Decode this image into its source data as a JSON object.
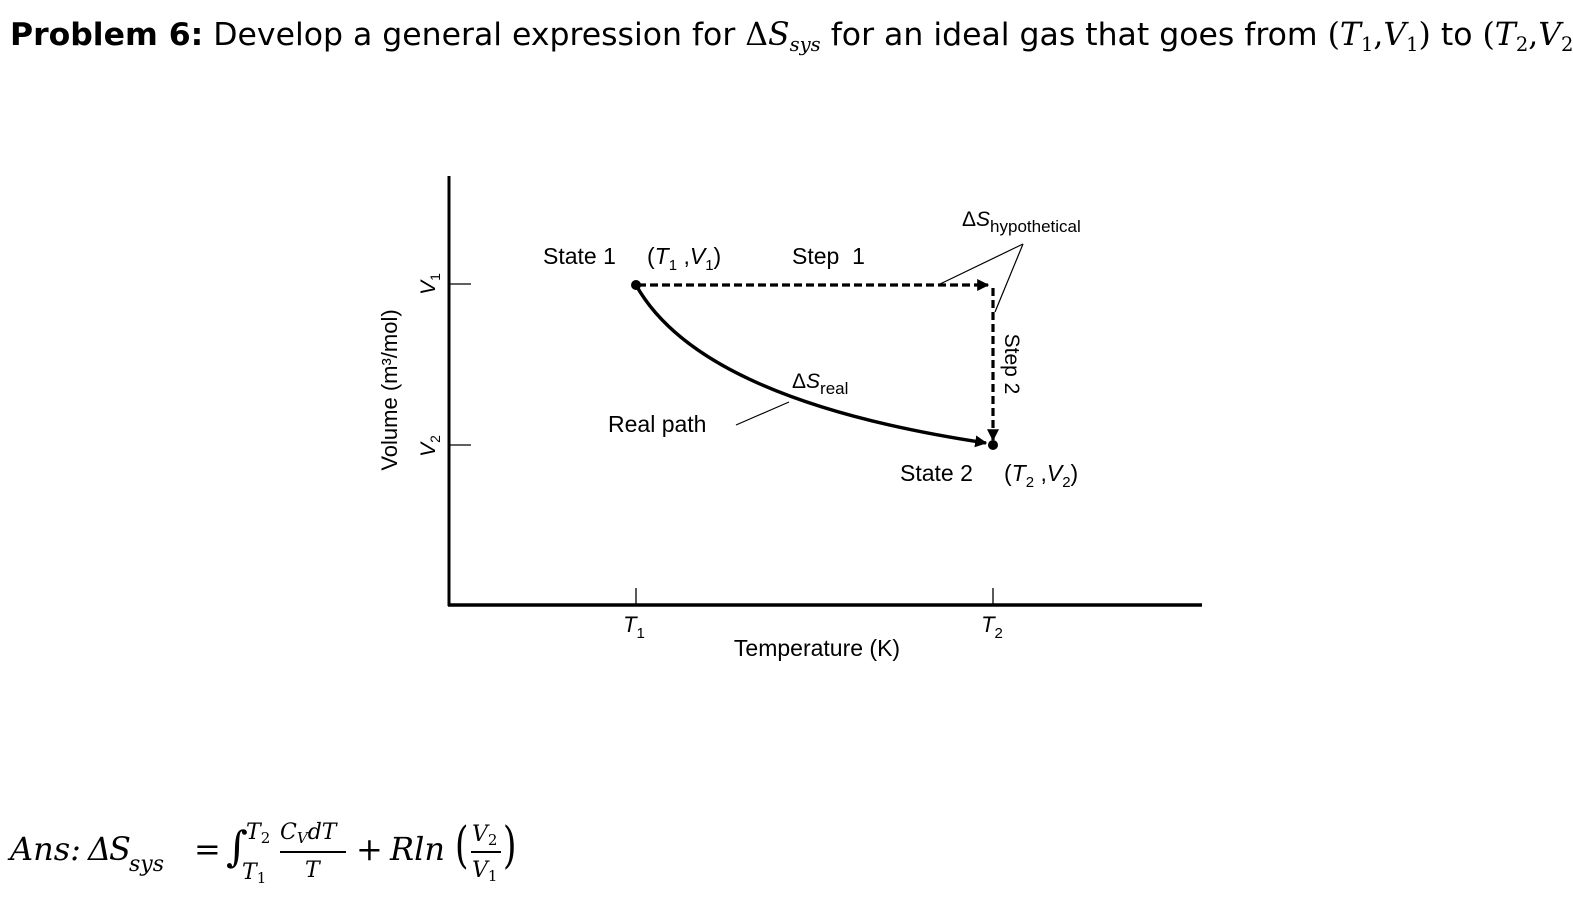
{
  "problem": {
    "label": "Problem 6:",
    "text_before": "Develop a general expression for ",
    "delta": "Δ",
    "S": "S",
    "sys_sub": "sys",
    "text_mid": " for an ideal gas that goes from ",
    "state1": {
      "open": "(",
      "T": "T",
      "T_sub": "1",
      "comma": ",",
      "V": "V",
      "V_sub": "1",
      "close": ")"
    },
    "to": " to ",
    "state2": {
      "open": "(",
      "T": "T",
      "T_sub": "2",
      "comma": ",",
      "V": "V",
      "V_sub": "2",
      "close": ")"
    },
    "period": "."
  },
  "diagram": {
    "y_axis_label": "Volume (m³/mol)",
    "x_axis_label": "Temperature (K)",
    "y_ticks": [
      {
        "base": "V",
        "sub": "1"
      },
      {
        "base": "V",
        "sub": "2"
      }
    ],
    "x_ticks": [
      {
        "base": "T",
        "sub": "1"
      },
      {
        "base": "T",
        "sub": "2"
      }
    ],
    "state1_label": "State 1",
    "state1_coords": {
      "open": "(",
      "T": "T",
      "T_sub": "1",
      "sep": " ,",
      "V": "V",
      "V_sub": "1",
      "close": ")"
    },
    "state2_label": "State 2",
    "state2_coords": {
      "open": "(",
      "T": "T",
      "T_sub": "2",
      "sep": " ,",
      "V": "V",
      "V_sub": "2",
      "close": ")"
    },
    "step1_label": "Step  1",
    "step2_label": "Step 2",
    "ds_hyp": {
      "delta": "Δ",
      "S": "S",
      "sub": "hypothetical"
    },
    "ds_real": {
      "delta": "Δ",
      "S": "S",
      "sub": "real"
    },
    "real_path_label": "Real path"
  },
  "answer": {
    "ans": "Ans:",
    "delta": "Δ",
    "S": "S",
    "sys_sub": "sys",
    "equals": "=",
    "integral": "∫",
    "upper": "T",
    "upper_sub": "2",
    "lower": "T",
    "lower_sub": "1",
    "num_C": "C",
    "num_C_sub": "V",
    "num_rest": "dT",
    "den": "T",
    "plus": "+",
    "Rln": "Rln",
    "paren_open": "(",
    "frac2_num": "V",
    "frac2_num_sub": "2",
    "frac2_den": "V",
    "frac2_den_sub": "1",
    "paren_close": ")"
  }
}
